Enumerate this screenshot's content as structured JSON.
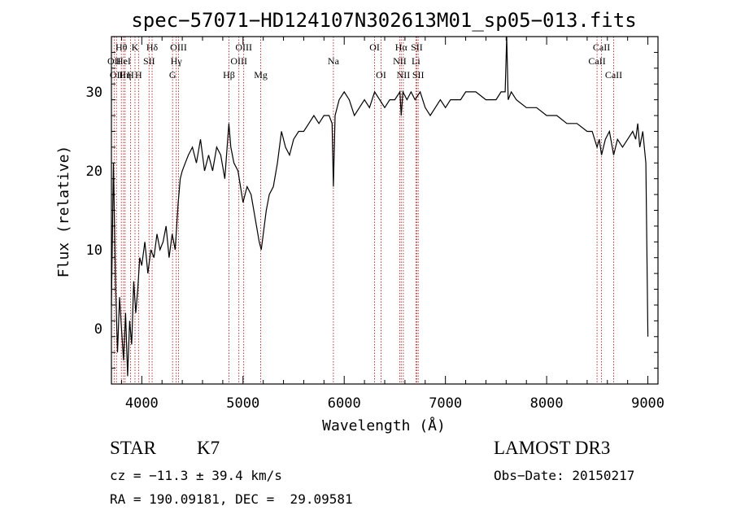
{
  "chart_data": {
    "type": "line",
    "title": "spec−57071−HD124107N302613M01_sp05−013.fits",
    "xlabel": "Wavelength (Å)",
    "ylabel": "Flux (relative)",
    "xlim": [
      3700,
      9100
    ],
    "ylim": [
      -7,
      37
    ],
    "xticks": [
      4000,
      5000,
      6000,
      7000,
      8000,
      9000
    ],
    "yticks": [
      0,
      10,
      20,
      30
    ],
    "series": [
      {
        "name": "spectrum",
        "x": [
          3700,
          3720,
          3740,
          3760,
          3780,
          3800,
          3820,
          3840,
          3860,
          3880,
          3900,
          3920,
          3940,
          3960,
          3980,
          4000,
          4030,
          4060,
          4090,
          4120,
          4150,
          4180,
          4210,
          4240,
          4270,
          4300,
          4330,
          4360,
          4380,
          4400,
          4430,
          4460,
          4500,
          4540,
          4580,
          4620,
          4660,
          4700,
          4740,
          4780,
          4820,
          4860,
          4880,
          4910,
          4950,
          5000,
          5040,
          5080,
          5120,
          5160,
          5180,
          5200,
          5230,
          5260,
          5300,
          5340,
          5380,
          5420,
          5460,
          5500,
          5550,
          5600,
          5650,
          5700,
          5750,
          5800,
          5850,
          5880,
          5893,
          5910,
          5950,
          6000,
          6050,
          6100,
          6150,
          6200,
          6250,
          6300,
          6350,
          6400,
          6450,
          6500,
          6550,
          6563,
          6580,
          6620,
          6660,
          6700,
          6750,
          6800,
          6850,
          6900,
          6950,
          7000,
          7050,
          7100,
          7150,
          7200,
          7300,
          7400,
          7500,
          7550,
          7590,
          7605,
          7620,
          7650,
          7700,
          7800,
          7900,
          8000,
          8100,
          8200,
          8300,
          8400,
          8450,
          8498,
          8520,
          8542,
          8580,
          8620,
          8662,
          8700,
          8750,
          8800,
          8850,
          8880,
          8900,
          8920,
          8950,
          8980,
          9000
        ],
        "y": [
          3,
          21,
          6,
          -3,
          4,
          0,
          -4,
          2,
          -6,
          1,
          -2,
          6,
          2,
          5,
          9,
          8,
          11,
          7,
          10,
          9,
          12,
          10,
          11,
          13,
          9,
          12,
          10,
          16,
          19,
          20,
          21,
          22,
          23,
          21,
          24,
          20,
          22,
          20,
          23,
          22,
          19,
          26,
          23,
          21,
          20,
          16,
          18,
          17,
          14,
          11,
          10,
          12,
          15,
          17,
          18,
          21,
          25,
          23,
          22,
          24,
          25,
          25,
          26,
          27,
          26,
          27,
          27,
          26,
          18,
          27,
          29,
          30,
          29,
          27,
          28,
          29,
          28,
          30,
          29,
          28,
          29,
          29,
          30,
          27,
          30,
          29,
          30,
          29,
          30,
          28,
          27,
          28,
          29,
          28,
          29,
          29,
          29,
          30,
          30,
          29,
          29,
          30,
          30,
          37,
          29,
          30,
          29,
          28,
          28,
          27,
          27,
          26,
          26,
          25,
          25,
          23,
          24,
          22,
          24,
          25,
          22,
          24,
          23,
          24,
          25,
          24,
          26,
          23,
          25,
          21,
          -1
        ]
      }
    ],
    "lines": [
      {
        "wave": 3727,
        "name": "OII",
        "row": 2
      },
      {
        "wave": 3750,
        "name": "OII",
        "row": 3
      },
      {
        "wave": 3798,
        "name": "Hθ",
        "row": 1
      },
      {
        "wave": 3820,
        "name": "HeI",
        "row": 2
      },
      {
        "wave": 3835,
        "name": "Hη",
        "row": 3
      },
      {
        "wave": 3889,
        "name": "H",
        "row": 3
      },
      {
        "wave": 3933,
        "name": "K",
        "row": 1
      },
      {
        "wave": 3968,
        "name": "H",
        "row": 3
      },
      {
        "wave": 4072,
        "name": "SII",
        "row": 2
      },
      {
        "wave": 4102,
        "name": "Hδ",
        "row": 1
      },
      {
        "wave": 4304,
        "name": "G",
        "row": 3
      },
      {
        "wave": 4340,
        "name": "Hγ",
        "row": 2
      },
      {
        "wave": 4363,
        "name": "OIII",
        "row": 1
      },
      {
        "wave": 4861,
        "name": "Hβ",
        "row": 3
      },
      {
        "wave": 4959,
        "name": "OIII",
        "row": 2
      },
      {
        "wave": 5007,
        "name": "OIII",
        "row": 1
      },
      {
        "wave": 5175,
        "name": "Mg",
        "row": 3
      },
      {
        "wave": 5893,
        "name": "Na",
        "row": 2
      },
      {
        "wave": 6300,
        "name": "OI",
        "row": 1
      },
      {
        "wave": 6364,
        "name": "OI",
        "row": 3
      },
      {
        "wave": 6548,
        "name": "NII",
        "row": 2
      },
      {
        "wave": 6563,
        "name": "Hα",
        "row": 1
      },
      {
        "wave": 6584,
        "name": "NII",
        "row": 3
      },
      {
        "wave": 6708,
        "name": "Li",
        "row": 2
      },
      {
        "wave": 6717,
        "name": "SII",
        "row": 1
      },
      {
        "wave": 6731,
        "name": "SII",
        "row": 3
      },
      {
        "wave": 8498,
        "name": "CaII",
        "row": 2
      },
      {
        "wave": 8542,
        "name": "CaII",
        "row": 1
      },
      {
        "wave": 8662,
        "name": "CaII",
        "row": 3
      }
    ]
  },
  "info": {
    "class": "STAR",
    "subclass": "K7",
    "survey": "LAMOST DR3",
    "cz": "cz = −11.3 ± 39.4 km/s",
    "obs_date": "Obs−Date: 20150217",
    "coords": "RA = 190.09181, DEC =  29.09581"
  }
}
